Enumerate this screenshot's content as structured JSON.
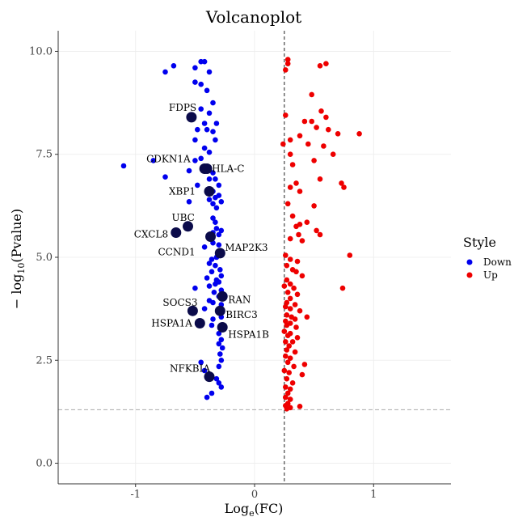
{
  "chart_data": {
    "type": "scatter",
    "title": "Volcanoplot",
    "xlabel": "Log",
    "xlabel_sub": "e",
    "xlabel_suffix": "(FC)",
    "ylabel": "− log",
    "ylabel_sub": "10",
    "ylabel_suffix": "(Pvalue)",
    "xlim": [
      -1.65,
      1.65
    ],
    "ylim": [
      -0.5,
      10.5
    ],
    "xticks": [
      -1,
      0,
      1
    ],
    "xtick_labels": [
      "-1",
      "0",
      "1"
    ],
    "yticks": [
      0,
      2.5,
      5,
      7.5,
      10
    ],
    "ytick_labels": [
      "0.0",
      "2.5",
      "5.0",
      "7.5",
      "10.0"
    ],
    "threshold_x": 0.25,
    "threshold_y": 1.3,
    "grid": "minimal",
    "legend": {
      "title": "Style",
      "position": "right",
      "items": [
        {
          "label": "Down",
          "color": "#0000ee"
        },
        {
          "label": "Up",
          "color": "#ee0000"
        }
      ]
    },
    "highlight_color": "#0b0b4a",
    "highlighted_genes": [
      {
        "name": "FDPS",
        "x": -0.53,
        "y": 8.4
      },
      {
        "name": "CDKN1A",
        "x": -0.42,
        "y": 7.15
      },
      {
        "name": "HLA-C",
        "x": -0.4,
        "y": 7.15
      },
      {
        "name": "XBP1",
        "x": -0.38,
        "y": 6.6
      },
      {
        "name": "UBC",
        "x": -0.56,
        "y": 5.75
      },
      {
        "name": "CXCL8",
        "x": -0.66,
        "y": 5.6
      },
      {
        "name": "CCND1",
        "x": -0.37,
        "y": 5.5
      },
      {
        "name": "MAP2K3",
        "x": -0.29,
        "y": 5.1
      },
      {
        "name": "RAN",
        "x": -0.27,
        "y": 4.05
      },
      {
        "name": "SOCS3",
        "x": -0.52,
        "y": 3.7
      },
      {
        "name": "BIRC3",
        "x": -0.29,
        "y": 3.7
      },
      {
        "name": "HSPA1A",
        "x": -0.46,
        "y": 3.4
      },
      {
        "name": "HSPA1B",
        "x": -0.27,
        "y": 3.3
      },
      {
        "name": "NFKBIA",
        "x": -0.38,
        "y": 2.1
      }
    ],
    "series": [
      {
        "name": "Down",
        "color": "#0000ee",
        "points": [
          [
            -0.42,
            9.75
          ],
          [
            -0.45,
            9.75
          ],
          [
            -0.68,
            9.65
          ],
          [
            -0.75,
            9.5
          ],
          [
            -0.5,
            9.6
          ],
          [
            -0.38,
            9.5
          ],
          [
            -0.45,
            9.2
          ],
          [
            -0.5,
            9.25
          ],
          [
            -0.4,
            9.05
          ],
          [
            -0.35,
            8.75
          ],
          [
            -0.45,
            8.6
          ],
          [
            -0.38,
            8.5
          ],
          [
            -0.32,
            8.25
          ],
          [
            -0.42,
            8.25
          ],
          [
            -0.48,
            8.1
          ],
          [
            -0.4,
            8.1
          ],
          [
            -0.35,
            8.05
          ],
          [
            -0.5,
            7.85
          ],
          [
            -0.33,
            7.85
          ],
          [
            -0.42,
            7.65
          ],
          [
            -0.38,
            7.55
          ],
          [
            -0.85,
            7.35
          ],
          [
            -0.5,
            7.35
          ],
          [
            -0.45,
            7.4
          ],
          [
            -1.1,
            7.22
          ],
          [
            -0.55,
            7.1
          ],
          [
            -0.35,
            7.05
          ],
          [
            -0.33,
            6.9
          ],
          [
            -0.38,
            6.9
          ],
          [
            -0.75,
            6.95
          ],
          [
            -0.48,
            6.75
          ],
          [
            -0.3,
            6.75
          ],
          [
            -0.35,
            6.6
          ],
          [
            -0.3,
            6.5
          ],
          [
            -0.33,
            6.45
          ],
          [
            -0.38,
            6.4
          ],
          [
            -0.28,
            6.35
          ],
          [
            -0.55,
            6.35
          ],
          [
            -0.35,
            6.3
          ],
          [
            -0.32,
            6.2
          ],
          [
            -0.35,
            5.95
          ],
          [
            -0.33,
            5.85
          ],
          [
            -0.32,
            5.7
          ],
          [
            -0.35,
            5.6
          ],
          [
            -0.28,
            5.65
          ],
          [
            -0.3,
            5.55
          ],
          [
            -0.35,
            5.35
          ],
          [
            -0.3,
            5.3
          ],
          [
            -0.42,
            5.25
          ],
          [
            -0.32,
            5.0
          ],
          [
            -0.36,
            4.95
          ],
          [
            -0.38,
            4.85
          ],
          [
            -0.33,
            4.8
          ],
          [
            -0.29,
            4.7
          ],
          [
            -0.36,
            4.65
          ],
          [
            -0.28,
            4.55
          ],
          [
            -0.4,
            4.5
          ],
          [
            -0.32,
            4.45
          ],
          [
            -0.3,
            4.4
          ],
          [
            -0.33,
            4.35
          ],
          [
            -0.38,
            4.3
          ],
          [
            -0.5,
            4.25
          ],
          [
            -0.28,
            4.2
          ],
          [
            -0.34,
            4.15
          ],
          [
            -0.3,
            4.05
          ],
          [
            -0.35,
            3.9
          ],
          [
            -0.28,
            3.85
          ],
          [
            -0.38,
            3.95
          ],
          [
            -0.42,
            3.75
          ],
          [
            -0.3,
            3.65
          ],
          [
            -0.28,
            3.55
          ],
          [
            -0.35,
            3.5
          ],
          [
            -0.36,
            3.35
          ],
          [
            -0.3,
            3.15
          ],
          [
            -0.28,
            3.0
          ],
          [
            -0.3,
            2.9
          ],
          [
            -0.27,
            2.8
          ],
          [
            -0.29,
            2.65
          ],
          [
            -0.28,
            2.5
          ],
          [
            -0.3,
            2.35
          ],
          [
            -0.45,
            2.45
          ],
          [
            -0.42,
            2.25
          ],
          [
            -0.32,
            2.05
          ],
          [
            -0.3,
            1.95
          ],
          [
            -0.28,
            1.85
          ],
          [
            -0.36,
            1.7
          ],
          [
            -0.4,
            1.6
          ]
        ]
      },
      {
        "name": "Up",
        "color": "#ee0000",
        "points": [
          [
            0.28,
            9.8
          ],
          [
            0.28,
            9.7
          ],
          [
            0.55,
            9.65
          ],
          [
            0.6,
            9.7
          ],
          [
            0.26,
            9.55
          ],
          [
            0.48,
            8.95
          ],
          [
            0.56,
            8.55
          ],
          [
            0.6,
            8.4
          ],
          [
            0.26,
            8.45
          ],
          [
            0.48,
            8.3
          ],
          [
            0.42,
            8.3
          ],
          [
            0.52,
            8.15
          ],
          [
            0.62,
            8.1
          ],
          [
            0.88,
            8.0
          ],
          [
            0.7,
            8.0
          ],
          [
            0.38,
            7.95
          ],
          [
            0.3,
            7.85
          ],
          [
            0.24,
            7.75
          ],
          [
            0.45,
            7.75
          ],
          [
            0.58,
            7.7
          ],
          [
            0.3,
            7.5
          ],
          [
            0.66,
            7.5
          ],
          [
            0.5,
            7.35
          ],
          [
            0.32,
            7.25
          ],
          [
            0.55,
            6.9
          ],
          [
            0.35,
            6.8
          ],
          [
            0.73,
            6.8
          ],
          [
            0.3,
            6.7
          ],
          [
            0.75,
            6.7
          ],
          [
            0.38,
            6.6
          ],
          [
            0.28,
            6.3
          ],
          [
            0.5,
            6.25
          ],
          [
            0.32,
            6.0
          ],
          [
            0.44,
            5.85
          ],
          [
            0.38,
            5.8
          ],
          [
            0.35,
            5.75
          ],
          [
            0.52,
            5.65
          ],
          [
            0.55,
            5.55
          ],
          [
            0.37,
            5.55
          ],
          [
            0.3,
            5.45
          ],
          [
            0.4,
            5.4
          ],
          [
            0.8,
            5.05
          ],
          [
            0.26,
            5.05
          ],
          [
            0.3,
            4.95
          ],
          [
            0.36,
            4.9
          ],
          [
            0.27,
            4.8
          ],
          [
            0.32,
            4.7
          ],
          [
            0.35,
            4.65
          ],
          [
            0.4,
            4.55
          ],
          [
            0.27,
            4.45
          ],
          [
            0.3,
            4.35
          ],
          [
            0.25,
            4.3
          ],
          [
            0.74,
            4.25
          ],
          [
            0.33,
            4.25
          ],
          [
            0.28,
            4.15
          ],
          [
            0.36,
            4.1
          ],
          [
            0.3,
            4.0
          ],
          [
            0.27,
            3.9
          ],
          [
            0.34,
            3.85
          ],
          [
            0.26,
            3.8
          ],
          [
            0.3,
            3.75
          ],
          [
            0.38,
            3.7
          ],
          [
            0.27,
            3.6
          ],
          [
            0.31,
            3.55
          ],
          [
            0.44,
            3.55
          ],
          [
            0.34,
            3.5
          ],
          [
            0.26,
            3.45
          ],
          [
            0.3,
            3.4
          ],
          [
            0.27,
            3.35
          ],
          [
            0.35,
            3.3
          ],
          [
            0.25,
            3.2
          ],
          [
            0.3,
            3.15
          ],
          [
            0.28,
            3.1
          ],
          [
            0.36,
            3.05
          ],
          [
            0.26,
            2.95
          ],
          [
            0.32,
            2.95
          ],
          [
            0.29,
            2.85
          ],
          [
            0.27,
            2.75
          ],
          [
            0.34,
            2.7
          ],
          [
            0.26,
            2.6
          ],
          [
            0.3,
            2.55
          ],
          [
            0.28,
            2.45
          ],
          [
            0.42,
            2.4
          ],
          [
            0.33,
            2.35
          ],
          [
            0.25,
            2.25
          ],
          [
            0.29,
            2.2
          ],
          [
            0.4,
            2.15
          ],
          [
            0.27,
            2.05
          ],
          [
            0.32,
            1.95
          ],
          [
            0.26,
            1.85
          ],
          [
            0.3,
            1.8
          ],
          [
            0.28,
            1.7
          ],
          [
            0.26,
            1.6
          ],
          [
            0.3,
            1.55
          ],
          [
            0.28,
            1.45
          ],
          [
            0.26,
            1.4
          ],
          [
            0.38,
            1.38
          ],
          [
            0.3,
            1.35
          ],
          [
            0.27,
            1.32
          ]
        ]
      }
    ]
  }
}
